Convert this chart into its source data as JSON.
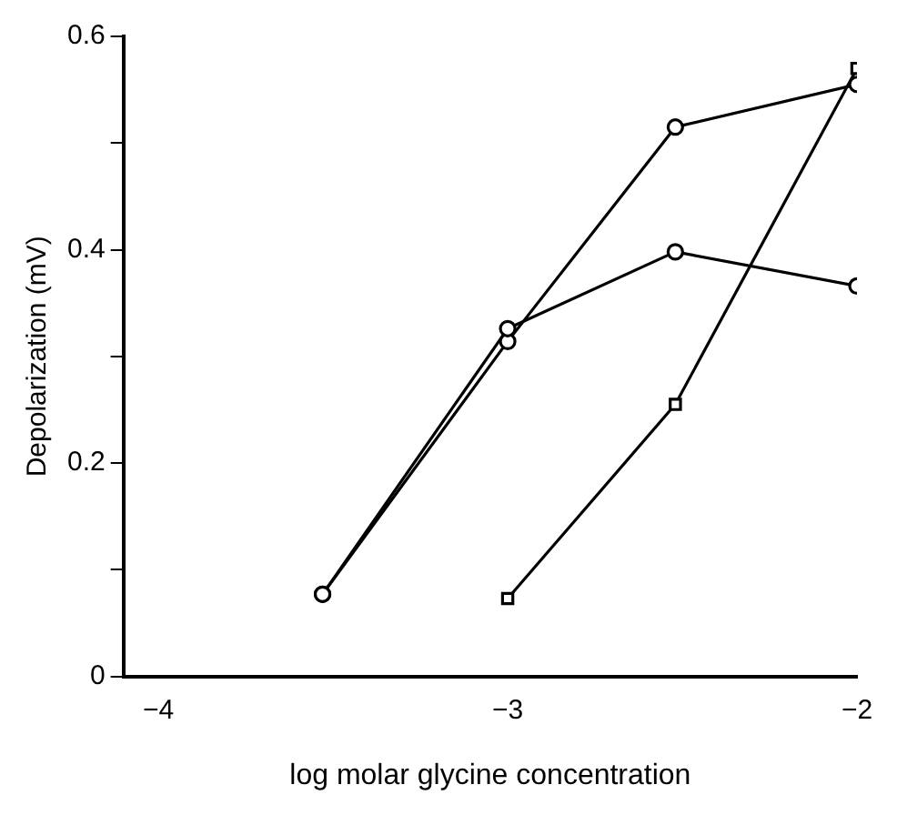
{
  "chart_data": {
    "type": "line",
    "xlabel": "log molar glycine concentration",
    "ylabel": "Depolarization (mV)",
    "xlim": [
      -4.1,
      -2
    ],
    "ylim": [
      0,
      0.6
    ],
    "xticks": [
      {
        "value": -4,
        "label": "−4"
      },
      {
        "value": -3,
        "label": "−3"
      },
      {
        "value": -2,
        "label": "−2"
      }
    ],
    "yticks": [
      0,
      {
        "value": 0.1,
        "label": null
      },
      0.2,
      {
        "value": 0.3,
        "label": null
      },
      0.4,
      {
        "value": 0.5,
        "label": null
      },
      0.6
    ],
    "grid": false,
    "legend": false,
    "line_style": "solid",
    "series": [
      {
        "color": "#000000",
        "marker": "circle",
        "x": [
          -3.53,
          -3,
          -2.52,
          -2
        ],
        "values": [
          0.077,
          0.326,
          0.398,
          0.366
        ]
      },
      {
        "color": "#000000",
        "marker": "circle",
        "x": [
          -3.53,
          -3,
          -2.52,
          -2
        ],
        "values": [
          0.077,
          0.314,
          0.515,
          0.555
        ]
      },
      {
        "color": "#000000",
        "marker": "square",
        "x": [
          -3,
          -2.52,
          -2
        ],
        "values": [
          0.073,
          0.255,
          0.57
        ]
      }
    ]
  }
}
